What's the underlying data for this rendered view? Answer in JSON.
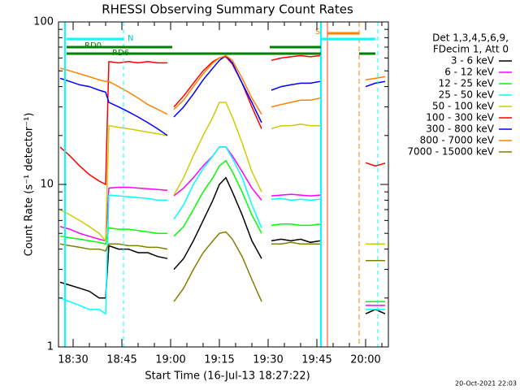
{
  "chart_data": {
    "type": "line",
    "title": "RHESSI Observing Summary Count Rates",
    "xlabel": "Start Time (16-Jul-13 18:27:22)",
    "ylabel": "Count Rate (s⁻¹ detector⁻¹)",
    "legend_header": [
      "Det 1,3,4,5,6,9,",
      "FDecim 1, Att 0"
    ],
    "footer": "20-Oct-2021 22:03",
    "flags": [
      "N",
      "RD0",
      "RD6",
      "S"
    ],
    "log_scale": true,
    "legend_position": "right",
    "xlim": [
      25.5,
      127
    ],
    "xticks": [
      {
        "value": 30,
        "label": "18:30"
      },
      {
        "value": 45,
        "label": "18:45"
      },
      {
        "value": 60,
        "label": "19:00"
      },
      {
        "value": 75,
        "label": "19:15"
      },
      {
        "value": 90,
        "label": "19:30"
      },
      {
        "value": 105,
        "label": "19:45"
      },
      {
        "value": 120,
        "label": "20:00"
      }
    ],
    "xminorticks": [
      35,
      40,
      50,
      55,
      65,
      70,
      80,
      85,
      95,
      100,
      110,
      115,
      125
    ],
    "ylim": [
      1,
      100
    ],
    "yticks": [
      1,
      10,
      100
    ],
    "yminorticks": [
      2,
      3,
      4,
      5,
      6,
      7,
      8,
      9,
      20,
      30,
      40,
      50,
      60,
      70,
      80,
      90
    ],
    "x": [
      26,
      29,
      32,
      35,
      38,
      40,
      41,
      44,
      47,
      50,
      53,
      56,
      59,
      60,
      61,
      64,
      67,
      70,
      73,
      75,
      77,
      79,
      82,
      85,
      88,
      90,
      91,
      94,
      97,
      100,
      103,
      106,
      113,
      120,
      123,
      126
    ],
    "series": [
      {
        "name": "3 - 6 keV",
        "color": "#000000",
        "values": [
          2.5,
          2.4,
          2.3,
          2.2,
          2.0,
          2.0,
          4.2,
          4.0,
          4.0,
          3.8,
          3.8,
          3.6,
          3.5,
          null,
          3.0,
          3.5,
          4.5,
          6,
          8,
          10,
          11,
          9,
          6.5,
          4.5,
          3.5,
          null,
          4.5,
          4.6,
          4.5,
          4.6,
          4.4,
          4.5,
          null,
          1.6,
          1.7,
          1.6
        ]
      },
      {
        "name": "6 - 12 keV",
        "color": "#ff00ff",
        "values": [
          5.5,
          5.3,
          5.0,
          4.8,
          4.6,
          4.5,
          9.5,
          9.6,
          9.6,
          9.5,
          9.4,
          9.3,
          9.2,
          null,
          8.5,
          9.5,
          11,
          13,
          15,
          17,
          17,
          15,
          12,
          9.5,
          8,
          null,
          8.5,
          8.6,
          8.7,
          8.6,
          8.5,
          8.6,
          null,
          1.8,
          1.8,
          1.8
        ]
      },
      {
        "name": "12 - 25 keV",
        "color": "#00ff00",
        "values": [
          4.8,
          4.7,
          4.6,
          4.5,
          4.4,
          4.3,
          5.4,
          5.3,
          5.3,
          5.2,
          5.1,
          5.0,
          5.0,
          null,
          4.8,
          5.5,
          7,
          9,
          11,
          13,
          14,
          12,
          9,
          6.5,
          5,
          null,
          5.6,
          5.7,
          5.7,
          5.6,
          5.6,
          5.7,
          null,
          1.9,
          1.9,
          1.9
        ]
      },
      {
        "name": "25 - 50 keV",
        "color": "#00ffff",
        "values": [
          2,
          1.9,
          1.8,
          1.7,
          1.7,
          1.6,
          8.6,
          8.5,
          8.4,
          8.3,
          8.2,
          8.0,
          8.0,
          null,
          6.1,
          7.5,
          10,
          12.5,
          15,
          17,
          17,
          14.5,
          11,
          7.5,
          5.4,
          null,
          8.1,
          8.2,
          8.0,
          8.1,
          8.0,
          8.1,
          null,
          1.7,
          1.7,
          1.7
        ]
      },
      {
        "name": "50 - 100 keV",
        "color": "#cccc00",
        "values": [
          7,
          6.5,
          6,
          5.5,
          5,
          4.5,
          23,
          22.5,
          22,
          21.5,
          21,
          20.5,
          20,
          null,
          8.6,
          11,
          15,
          20,
          26,
          32,
          32,
          26,
          18,
          12,
          9,
          null,
          22,
          23,
          23,
          23.5,
          23,
          23,
          null,
          4.3,
          4.3,
          4.3
        ]
      },
      {
        "name": "100 - 300 keV",
        "color": "#ff0000",
        "values": [
          17,
          15,
          13,
          11.5,
          10.5,
          10,
          57,
          56,
          57,
          56,
          57,
          56,
          56,
          null,
          30,
          35,
          42,
          50,
          57,
          60,
          61,
          55,
          42,
          30,
          22,
          null,
          58,
          60,
          61,
          62,
          61,
          62,
          null,
          13.6,
          13,
          13.5
        ]
      },
      {
        "name": "300 - 800 keV",
        "color": "#0000ff",
        "values": [
          45,
          43,
          41,
          40,
          38,
          37,
          32,
          30,
          28,
          26,
          24,
          22,
          20,
          null,
          26,
          30,
          36,
          44,
          52,
          58,
          62,
          56,
          42,
          32,
          24,
          null,
          38,
          40,
          41,
          42,
          42,
          43,
          null,
          40,
          42,
          43
        ]
      },
      {
        "name": "800 - 7000 keV",
        "color": "#ff8000",
        "values": [
          52,
          50,
          48,
          46,
          44,
          43,
          43,
          40,
          37,
          34,
          31,
          29,
          27,
          null,
          29,
          33,
          40,
          48,
          56,
          60,
          62,
          58,
          45,
          34,
          27,
          null,
          30,
          31,
          32,
          33,
          33,
          34,
          null,
          44,
          45,
          46
        ]
      },
      {
        "name": "7000 - 15000 keV",
        "color": "#808000",
        "values": [
          4.3,
          4.2,
          4.1,
          4.0,
          4.0,
          3.9,
          4.3,
          4.3,
          4.2,
          4.2,
          4.1,
          4.1,
          4.0,
          null,
          1.9,
          2.3,
          3,
          3.8,
          4.5,
          5,
          5.1,
          4.6,
          3.6,
          2.6,
          1.9,
          null,
          4.3,
          4.3,
          4.4,
          4.3,
          4.3,
          4.3,
          null,
          3.4,
          3.4,
          3.4
        ]
      }
    ]
  }
}
